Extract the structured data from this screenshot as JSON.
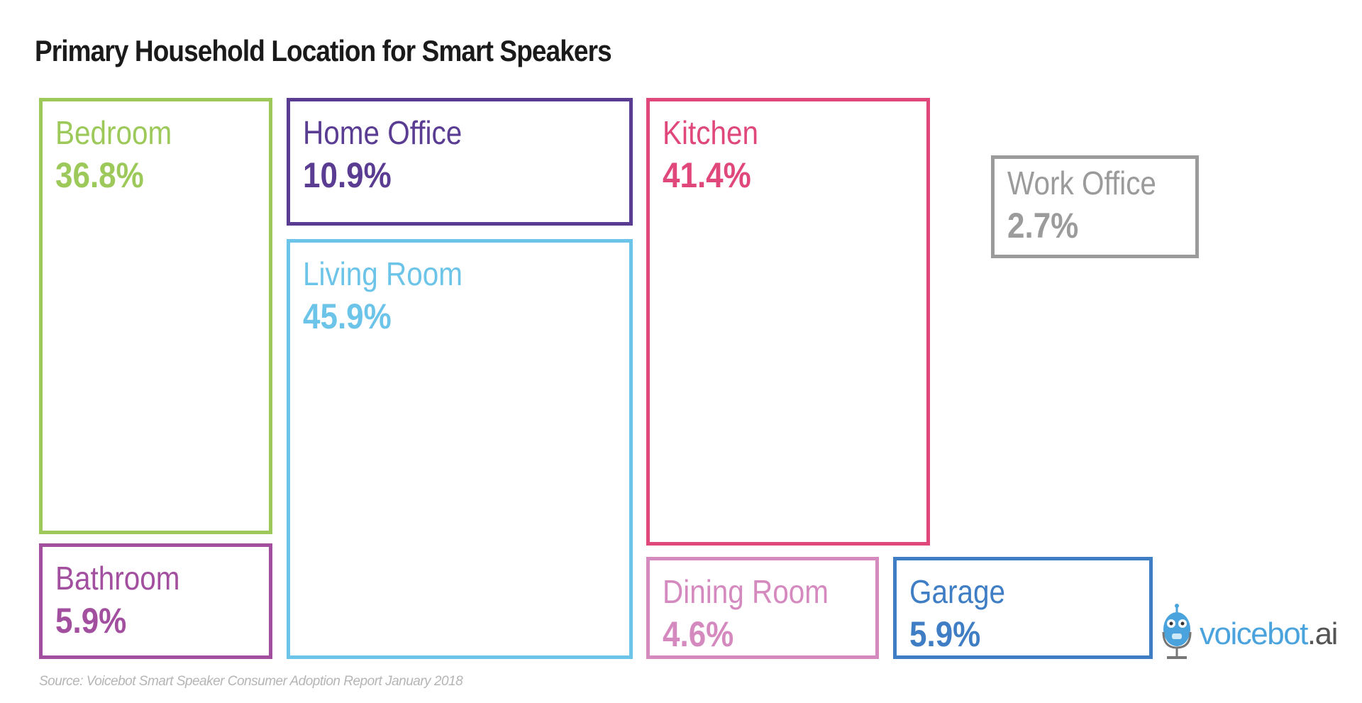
{
  "title": "Primary Household Location for Smart Speakers",
  "chart_data": {
    "type": "treemap",
    "title": "Primary Household Location for Smart Speakers",
    "unit": "%",
    "items": [
      {
        "label": "Bedroom",
        "value": 36.8,
        "display": "36.8%",
        "color": "#9dc95a"
      },
      {
        "label": "Bathroom",
        "value": 5.9,
        "display": "5.9%",
        "color": "#a24f9f"
      },
      {
        "label": "Home Office",
        "value": 10.9,
        "display": "10.9%",
        "color": "#5a3d92"
      },
      {
        "label": "Living Room",
        "value": 45.9,
        "display": "45.9%",
        "color": "#6dc4e9"
      },
      {
        "label": "Kitchen",
        "value": 41.4,
        "display": "41.4%",
        "color": "#e0487c"
      },
      {
        "label": "Dining Room",
        "value": 4.6,
        "display": "4.6%",
        "color": "#d58abf"
      },
      {
        "label": "Garage",
        "value": 5.9,
        "display": "5.9%",
        "color": "#3f7ec4"
      },
      {
        "label": "Work Office",
        "value": 2.7,
        "display": "2.7%",
        "color": "#9b9b9b"
      }
    ]
  },
  "source": "Source: Voicebot Smart Speaker Consumer Adoption Report January 2018",
  "logo": {
    "text_main": "voicebot",
    "text_suffix": ".ai"
  }
}
